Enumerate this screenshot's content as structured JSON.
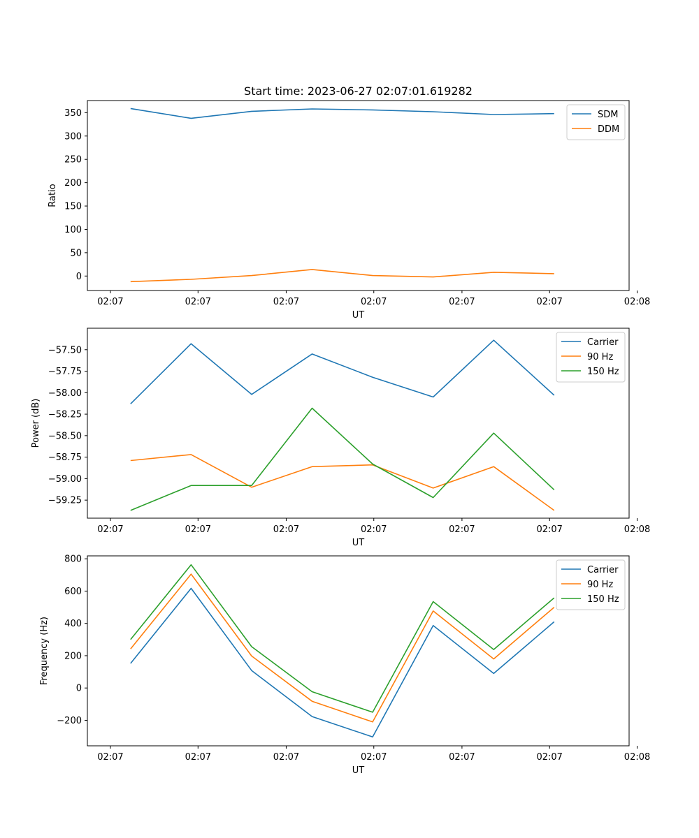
{
  "figure": {
    "title": "Start time: 2023-06-27 02:07:01.619282"
  },
  "chart_data": [
    {
      "type": "line",
      "title": "Start time: 2023-06-27 02:07:01.619282",
      "xlabel": "UT",
      "ylabel": "Ratio",
      "x_tick_labels": [
        "02:07",
        "02:07",
        "02:07",
        "02:07",
        "02:07",
        "02:07",
        "02:07"
      ],
      "x_tick_label_last": "02:08",
      "y_ticks": [
        0,
        50,
        100,
        150,
        200,
        250,
        300,
        350
      ],
      "y_tick_labels": [
        "0",
        "50",
        "100",
        "150",
        "200",
        "250",
        "300",
        "350"
      ],
      "ylim": [
        -31,
        376
      ],
      "legend_position": "top-right",
      "series": [
        {
          "name": "SDM",
          "color": "#1f77b4",
          "values": [
            359,
            338,
            353,
            358,
            356,
            352,
            346,
            348
          ]
        },
        {
          "name": "DDM",
          "color": "#ff7f0e",
          "values": [
            -12,
            -7,
            1,
            14,
            1,
            -2,
            8,
            5
          ]
        }
      ]
    },
    {
      "type": "line",
      "title": "",
      "xlabel": "UT",
      "ylabel": "Power (dB)",
      "x_tick_labels": [
        "02:07",
        "02:07",
        "02:07",
        "02:07",
        "02:07",
        "02:07",
        "02:07"
      ],
      "x_tick_label_last": "02:08",
      "y_ticks": [
        -59.25,
        -59.0,
        -58.75,
        -58.5,
        -58.25,
        -58.0,
        -57.75,
        -57.5
      ],
      "y_tick_labels": [
        "−59.25",
        "−59.00",
        "−58.75",
        "−58.50",
        "−58.25",
        "−58.00",
        "−57.75",
        "−57.50"
      ],
      "ylim": [
        -59.46,
        -57.25
      ],
      "legend_position": "top-right",
      "series": [
        {
          "name": "Carrier",
          "color": "#1f77b4",
          "values": [
            -58.13,
            -57.43,
            -58.02,
            -57.55,
            -57.82,
            -58.05,
            -57.39,
            -58.03
          ]
        },
        {
          "name": "90 Hz",
          "color": "#ff7f0e",
          "values": [
            -58.79,
            -58.72,
            -59.1,
            -58.86,
            -58.84,
            -59.11,
            -58.86,
            -59.37
          ]
        },
        {
          "name": "150 Hz",
          "color": "#2ca02c",
          "values": [
            -59.37,
            -59.08,
            -59.08,
            -58.18,
            -58.83,
            -59.22,
            -58.47,
            -59.13
          ]
        }
      ]
    },
    {
      "type": "line",
      "title": "",
      "xlabel": "UT",
      "ylabel": "Frequency (Hz)",
      "x_tick_labels": [
        "02:07",
        "02:07",
        "02:07",
        "02:07",
        "02:07",
        "02:07",
        "02:07"
      ],
      "x_tick_label_last": "02:08",
      "y_ticks": [
        -200,
        0,
        200,
        400,
        600,
        800
      ],
      "y_tick_labels": [
        "−200",
        "0",
        "200",
        "400",
        "600",
        "800"
      ],
      "ylim": [
        -358,
        818
      ],
      "legend_position": "top-right",
      "series": [
        {
          "name": "Carrier",
          "color": "#1f77b4",
          "values": [
            152,
            617,
            108,
            -177,
            -303,
            387,
            90,
            410
          ]
        },
        {
          "name": "90 Hz",
          "color": "#ff7f0e",
          "values": [
            242,
            705,
            198,
            -82,
            -210,
            477,
            180,
            500
          ]
        },
        {
          "name": "150 Hz",
          "color": "#2ca02c",
          "values": [
            300,
            763,
            256,
            -23,
            -150,
            535,
            238,
            558
          ]
        }
      ]
    }
  ]
}
